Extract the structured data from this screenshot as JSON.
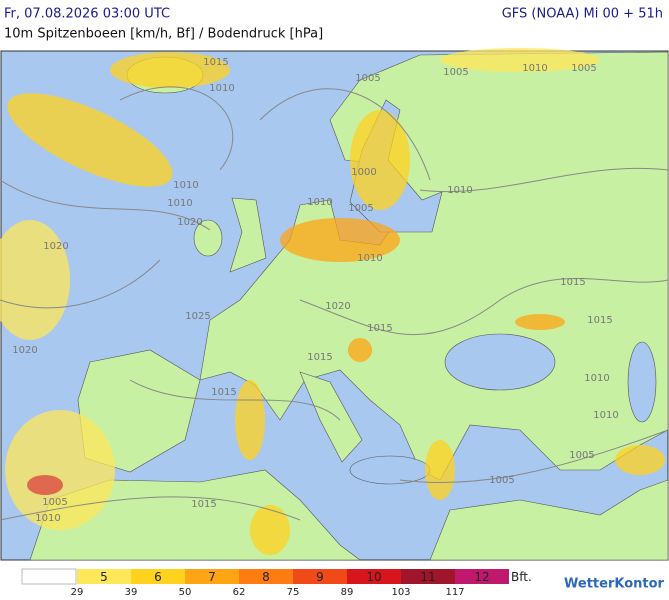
{
  "header": {
    "datetime": "Fr, 07.08.2026 03:00 UTC",
    "model": "GFS (NOAA) Mi 00 + 51h",
    "subtitle": "10m Spitzenboeen [km/h, Bf] / Bodendruck [hPa]"
  },
  "map": {
    "isobar_labels": [
      "1015",
      "1010",
      "1005",
      "1005",
      "1010",
      "1010",
      "1010",
      "1020",
      "1020",
      "1000",
      "1005",
      "1010",
      "1010",
      "1015",
      "1020",
      "1025",
      "1020",
      "1015",
      "1015",
      "1015",
      "1010",
      "1015",
      "1010",
      "1005",
      "1005",
      "1005",
      "1015",
      "1010",
      "1010",
      "1005"
    ]
  },
  "legend": {
    "classes": [
      {
        "bft": "5",
        "color": "#ffe75a"
      },
      {
        "bft": "6",
        "color": "#ffd21e"
      },
      {
        "bft": "7",
        "color": "#ffa514"
      },
      {
        "bft": "8",
        "color": "#ff7d10"
      },
      {
        "bft": "9",
        "color": "#f04a18"
      },
      {
        "bft": "10",
        "color": "#d8141c"
      },
      {
        "bft": "11",
        "color": "#a0142c"
      },
      {
        "bft": "12",
        "color": "#c0186c"
      }
    ],
    "thresholds": [
      "29",
      "39",
      "50",
      "62",
      "75",
      "89",
      "103",
      "117"
    ],
    "unit": "Bft."
  },
  "brand": "WetterKontor"
}
